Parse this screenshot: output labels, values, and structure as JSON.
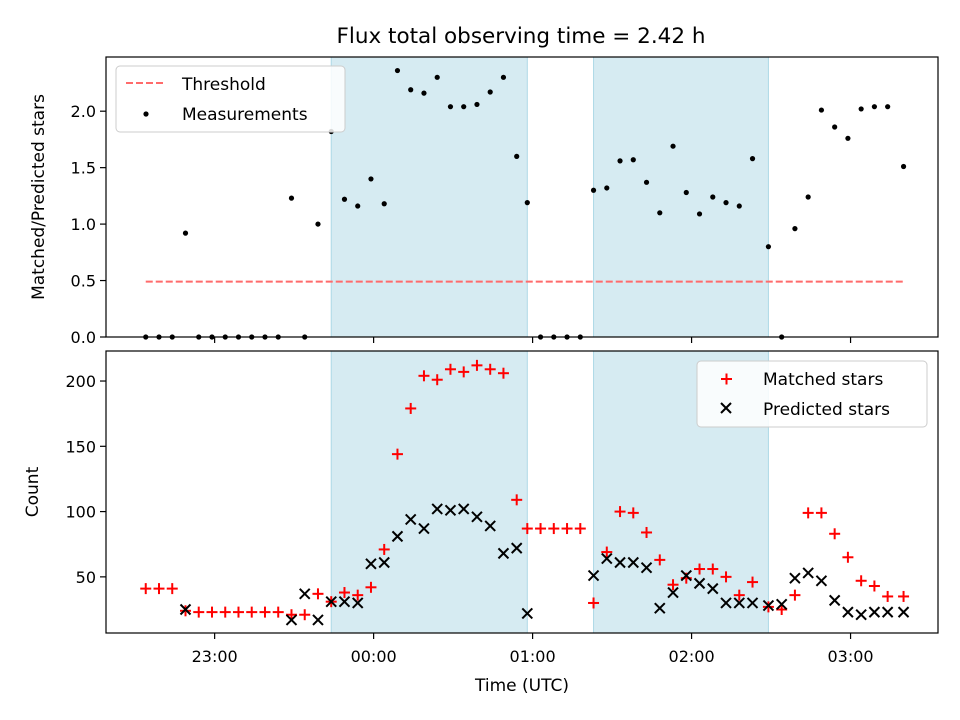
{
  "title": "Flux total observing time = 2.42 h",
  "colors": {
    "threshold": "#ff6b6b",
    "measurement": "#000000",
    "matched": "#ff0000",
    "predicted": "#000000",
    "shade": "#add8e6"
  },
  "chart_data": [
    {
      "type": "scatter",
      "ylabel": "Matched/Predicted stars",
      "ylim": [
        0,
        2.48
      ],
      "xlim": [
        "22:19",
        "03:33"
      ],
      "yticks": [
        0.0,
        0.5,
        1.0,
        1.5,
        2.0
      ],
      "ytick_labels": [
        "0.0",
        "0.5",
        "1.0",
        "1.5",
        "2.0"
      ],
      "shaded_intervals": [
        [
          "23:44",
          "00:58"
        ],
        [
          "01:23",
          "02:29"
        ]
      ],
      "legend": {
        "placement": "top-left",
        "entries": [
          "Threshold",
          "Measurements"
        ]
      },
      "threshold": {
        "name": "Threshold",
        "value": 0.49,
        "x_start": "22:34",
        "x_end": "03:20"
      },
      "series": [
        {
          "name": "Measurements",
          "x": [
            "22:34",
            "22:39",
            "22:44",
            "22:49",
            "22:54",
            "22:59",
            "23:04",
            "23:09",
            "23:14",
            "23:19",
            "23:24",
            "23:29",
            "23:34",
            "23:39",
            "23:44",
            "23:49",
            "23:54",
            "23:59",
            "00:04",
            "00:09",
            "00:14",
            "00:19",
            "00:24",
            "00:29",
            "00:34",
            "00:39",
            "00:44",
            "00:49",
            "00:54",
            "00:58",
            "01:03",
            "01:08",
            "01:13",
            "01:18",
            "01:23",
            "01:28",
            "01:33",
            "01:38",
            "01:43",
            "01:48",
            "01:53",
            "01:58",
            "02:03",
            "02:08",
            "02:13",
            "02:18",
            "02:23",
            "02:29",
            "02:34",
            "02:39",
            "02:44",
            "02:49",
            "02:54",
            "02:59",
            "03:04",
            "03:09",
            "03:14",
            "03:20"
          ],
          "y": [
            0,
            0,
            0,
            0.92,
            0,
            0,
            0,
            0,
            0,
            0,
            0,
            1.23,
            0,
            1.0,
            1.82,
            1.22,
            1.16,
            1.4,
            1.18,
            2.36,
            2.19,
            2.16,
            2.3,
            2.04,
            2.04,
            2.06,
            2.17,
            2.3,
            1.6,
            1.19,
            0,
            0,
            0,
            0,
            1.3,
            1.32,
            1.56,
            1.57,
            1.37,
            1.1,
            1.69,
            1.28,
            1.09,
            1.24,
            1.19,
            1.16,
            1.58,
            0.8,
            0,
            0.96,
            1.24,
            2.01,
            1.86,
            1.76,
            2.02,
            2.04,
            2.04,
            1.51
          ]
        }
      ]
    },
    {
      "type": "scatter",
      "xlabel": "Time (UTC)",
      "ylabel": "Count",
      "ylim": [
        7,
        223
      ],
      "xlim": [
        "22:19",
        "03:33"
      ],
      "yticks": [
        50,
        100,
        150,
        200
      ],
      "ytick_labels": [
        "50",
        "100",
        "150",
        "200"
      ],
      "xticks": [
        "23:00",
        "00:00",
        "01:00",
        "02:00",
        "03:00"
      ],
      "shaded_intervals": [
        [
          "23:44",
          "00:58"
        ],
        [
          "01:23",
          "02:29"
        ]
      ],
      "legend": {
        "placement": "top-right",
        "entries": [
          "Matched stars",
          "Predicted stars"
        ]
      },
      "series": [
        {
          "name": "Matched stars",
          "x": [
            "22:34",
            "22:39",
            "22:44",
            "22:49",
            "22:54",
            "22:59",
            "23:04",
            "23:09",
            "23:14",
            "23:19",
            "23:24",
            "23:29",
            "23:34",
            "23:39",
            "23:44",
            "23:49",
            "23:54",
            "23:59",
            "00:04",
            "00:09",
            "00:14",
            "00:19",
            "00:24",
            "00:29",
            "00:34",
            "00:39",
            "00:44",
            "00:49",
            "00:54",
            "00:58",
            "01:03",
            "01:08",
            "01:13",
            "01:18",
            "01:23",
            "01:28",
            "01:33",
            "01:38",
            "01:43",
            "01:48",
            "01:53",
            "01:58",
            "02:03",
            "02:08",
            "02:13",
            "02:18",
            "02:23",
            "02:29",
            "02:34",
            "02:39",
            "02:44",
            "02:49",
            "02:54",
            "02:59",
            "03:04",
            "03:09",
            "03:14",
            "03:20"
          ],
          "y": [
            41,
            41,
            41,
            24,
            23,
            23,
            23,
            23,
            23,
            23,
            23,
            21,
            21,
            37,
            31,
            38,
            36,
            42,
            71,
            144,
            179,
            204,
            201,
            209,
            207,
            212,
            209,
            206,
            109,
            87,
            87,
            87,
            87,
            87,
            30,
            69,
            100,
            99,
            84,
            63,
            44,
            49,
            56,
            56,
            50,
            36,
            46,
            27,
            25,
            36,
            99,
            99,
            83,
            65,
            47,
            43,
            35,
            35
          ],
          "marker": "plus"
        },
        {
          "name": "Predicted stars",
          "x": [
            "22:49",
            "23:29",
            "23:34",
            "23:39",
            "23:44",
            "23:49",
            "23:54",
            "23:59",
            "00:04",
            "00:09",
            "00:14",
            "00:19",
            "00:24",
            "00:29",
            "00:34",
            "00:39",
            "00:44",
            "00:49",
            "00:54",
            "00:58",
            "01:23",
            "01:28",
            "01:33",
            "01:38",
            "01:43",
            "01:48",
            "01:53",
            "01:58",
            "02:03",
            "02:08",
            "02:13",
            "02:18",
            "02:23",
            "02:29",
            "02:34",
            "02:39",
            "02:44",
            "02:49",
            "02:54",
            "02:59",
            "03:04",
            "03:09",
            "03:14",
            "03:20"
          ],
          "y": [
            25,
            17,
            37,
            17,
            31,
            31,
            30,
            60,
            61,
            81,
            94,
            87,
            102,
            101,
            102,
            96,
            89,
            68,
            72,
            22,
            51,
            64,
            61,
            61,
            57,
            26,
            38,
            51,
            45,
            41,
            30,
            30,
            30,
            28,
            29,
            49,
            53,
            47,
            32,
            23,
            21,
            23,
            23,
            23
          ],
          "marker": "x"
        }
      ]
    }
  ]
}
